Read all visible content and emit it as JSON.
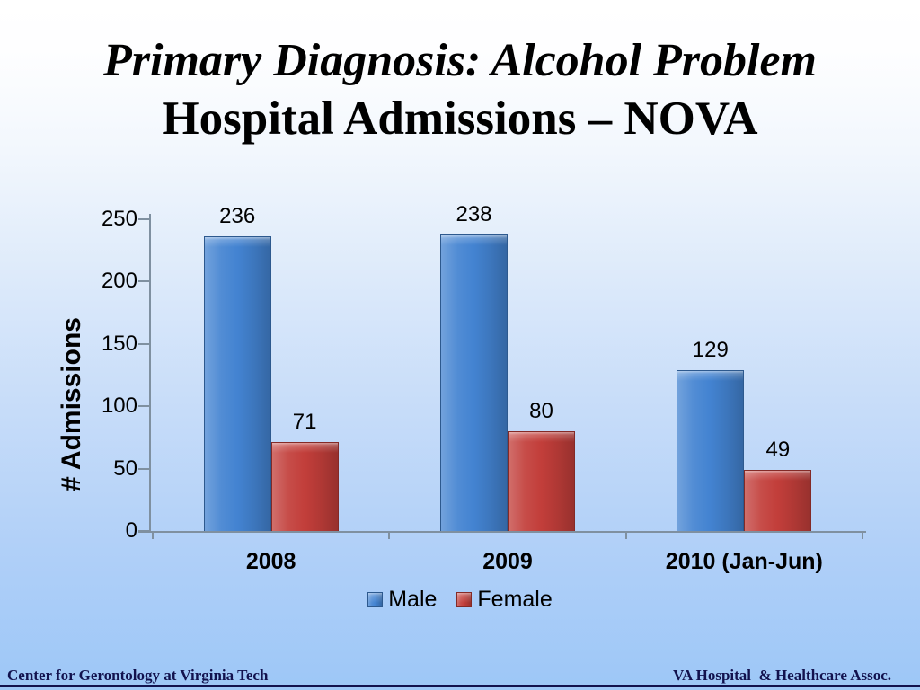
{
  "slide": {
    "title_line1": "Primary Diagnosis: Alcohol Problem",
    "title_line2": "Hospital Admissions – NOVA",
    "footer_left": "Center for Gerontology at Virginia Tech",
    "footer_right": "VA Hospital  & Healthcare Assoc."
  },
  "chart_data": {
    "type": "bar",
    "title": "",
    "categories": [
      "2008",
      "2009",
      "2010 (Jan-Jun)"
    ],
    "series": [
      {
        "name": "Male",
        "color": "#4383d1",
        "values": [
          236,
          238,
          129
        ]
      },
      {
        "name": "Female",
        "color": "#c23e3a",
        "values": [
          71,
          80,
          49
        ]
      }
    ],
    "xlabel": "",
    "ylabel": "# Admissions",
    "y_ticks": [
      0,
      50,
      100,
      150,
      200,
      250
    ],
    "ylim": [
      0,
      250
    ],
    "grid": false,
    "data_labels": true,
    "legend_position": "bottom"
  },
  "colors": {
    "male_bar": "#4383d1",
    "female_bar": "#c23e3a",
    "background_top": "#ffffff",
    "background_bottom": "#9dc7f7",
    "axis": "#7f90a0",
    "footer_text": "#12124e",
    "footer_rule": "#12124e",
    "text": "#000000"
  }
}
